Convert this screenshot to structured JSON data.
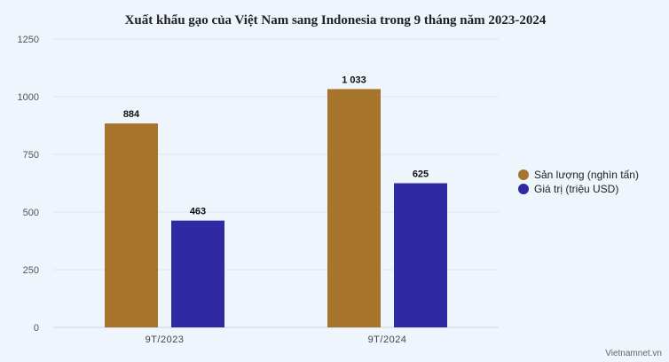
{
  "chart_data": {
    "type": "bar",
    "title": "Xuất khẩu gạo của Việt Nam sang Indonesia trong 9 tháng năm 2023-2024",
    "categories": [
      "9T/2023",
      "9T/2024"
    ],
    "series": [
      {
        "name": "Sản lượng (nghìn tấn)",
        "values": [
          884,
          1033
        ],
        "labels": [
          "884",
          "1 033"
        ],
        "color": "#a6742b"
      },
      {
        "name": "Giá trị (triệu USD)",
        "values": [
          463,
          625
        ],
        "labels": [
          "463",
          "625"
        ],
        "color": "#2f2aa3"
      }
    ],
    "ylim": [
      0,
      1250
    ],
    "yticks": [
      0,
      250,
      500,
      750,
      1000,
      1250
    ],
    "ytick_labels": [
      "0",
      "250",
      "500",
      "750",
      "1000",
      "1250"
    ],
    "grid": true,
    "legend_position": "right"
  },
  "source": "Vietnamnet.vn"
}
